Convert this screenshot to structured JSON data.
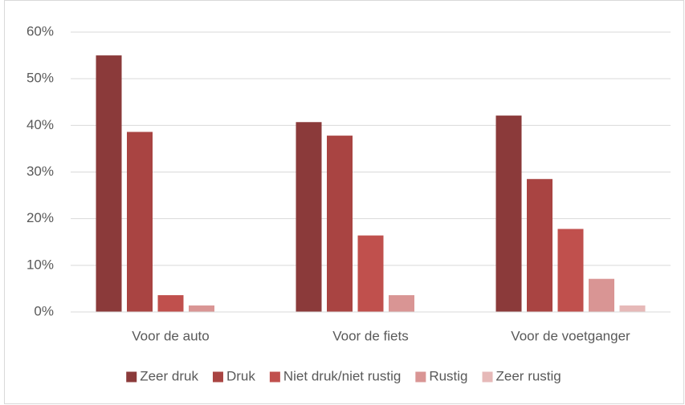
{
  "chart_data": {
    "type": "bar",
    "categories": [
      "Voor de auto",
      "Voor de fiets",
      "Voor de voetganger"
    ],
    "series": [
      {
        "name": "Zeer druk",
        "color": "#8b3a3a",
        "values": [
          55.0,
          40.7,
          42.1
        ]
      },
      {
        "name": "Druk",
        "color": "#a94442",
        "values": [
          38.6,
          37.8,
          28.5
        ]
      },
      {
        "name": "Niet druk/niet rustig",
        "color": "#c0504d",
        "values": [
          3.6,
          16.4,
          17.8
        ]
      },
      {
        "name": "Rustig",
        "color": "#d99594",
        "values": [
          1.4,
          3.6,
          7.1
        ]
      },
      {
        "name": "Zeer rustig",
        "color": "#e6b9b8",
        "values": [
          0,
          0,
          1.4
        ]
      }
    ],
    "ylim": [
      0,
      60
    ],
    "yticks": [
      {
        "value": 0,
        "label": "0%"
      },
      {
        "value": 10,
        "label": "10%"
      },
      {
        "value": 20,
        "label": "20%"
      },
      {
        "value": 30,
        "label": "30%"
      },
      {
        "value": 40,
        "label": "40%"
      },
      {
        "value": 50,
        "label": "50%"
      },
      {
        "value": 60,
        "label": "60%"
      }
    ],
    "grid": true,
    "legend": "bottom"
  }
}
